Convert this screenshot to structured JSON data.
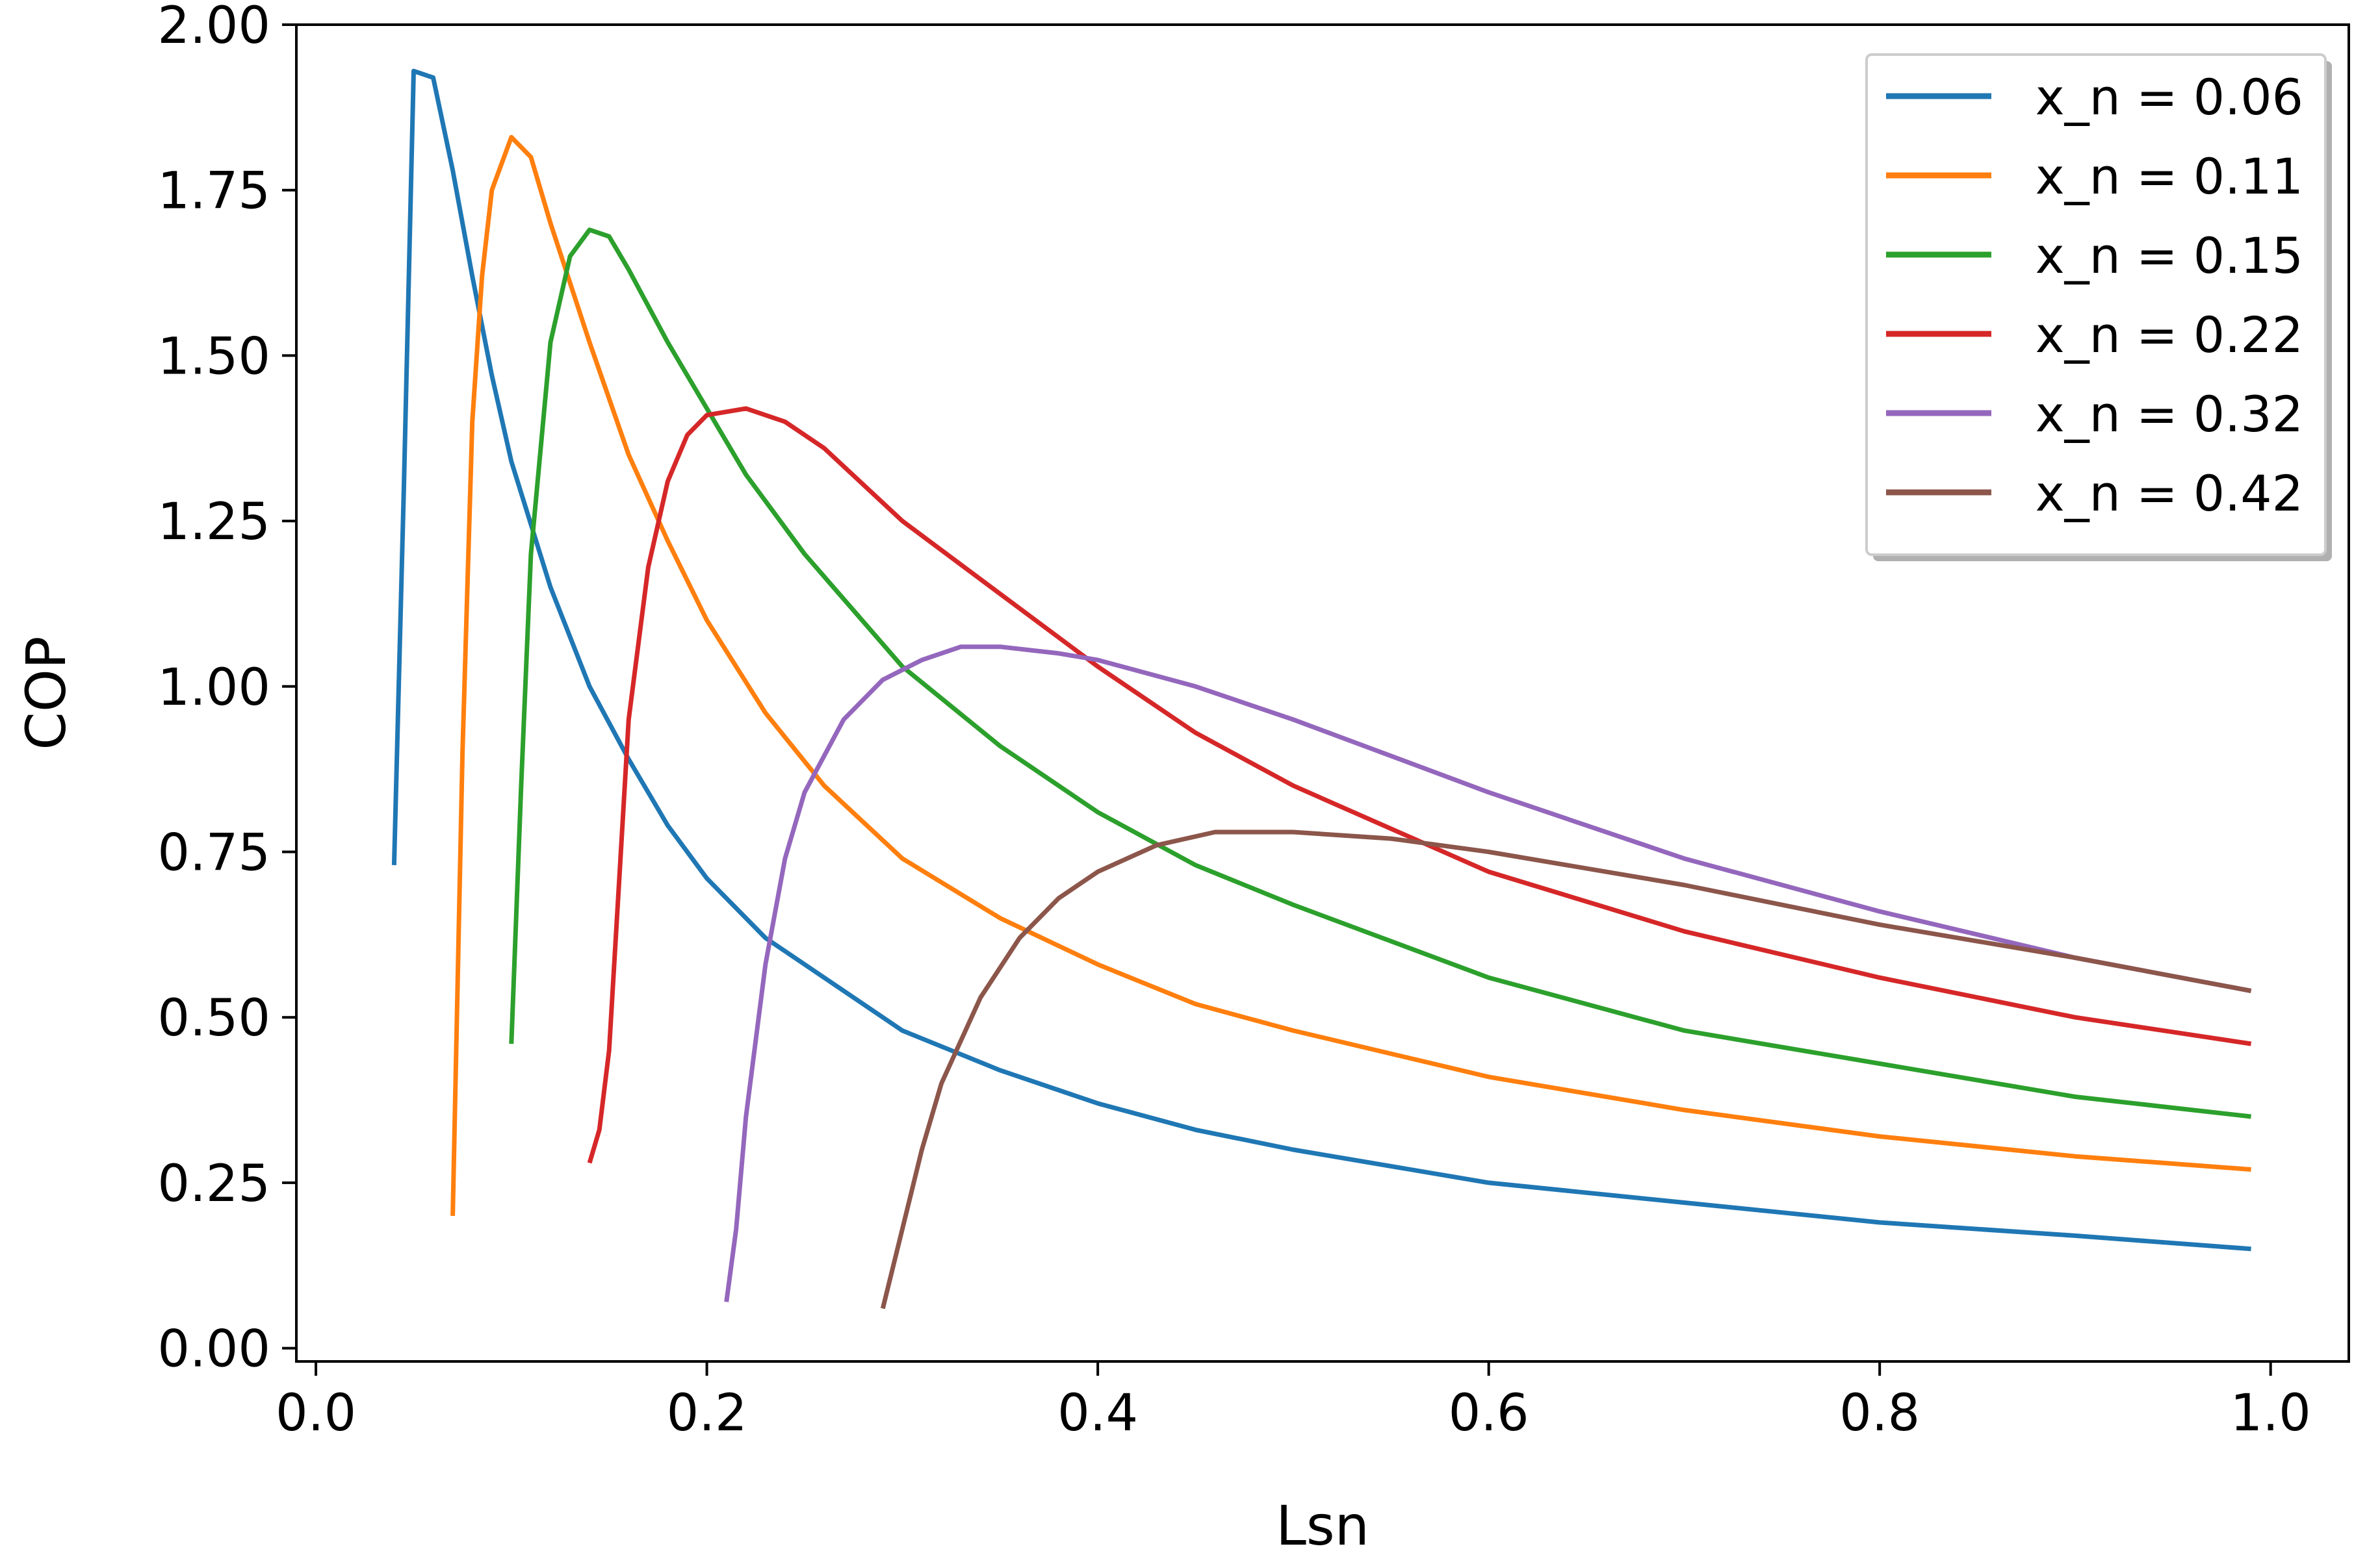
{
  "chart_data": {
    "type": "line",
    "title": "",
    "xlabel": "Lsn",
    "ylabel": "COP",
    "xlim": [
      -0.01,
      1.04
    ],
    "ylim": [
      -0.02,
      2.0
    ],
    "xticks": [
      0.0,
      0.2,
      0.4,
      0.6,
      0.8,
      1.0
    ],
    "xtick_labels": [
      "0.0",
      "0.2",
      "0.4",
      "0.6",
      "0.8",
      "1.0"
    ],
    "yticks": [
      0.0,
      0.25,
      0.5,
      0.75,
      1.0,
      1.25,
      1.5,
      1.75,
      2.0
    ],
    "ytick_labels": [
      "0.00",
      "0.25",
      "0.50",
      "0.75",
      "1.00",
      "1.25",
      "1.50",
      "1.75",
      "2.00"
    ],
    "grid": false,
    "legend_position": "top-right",
    "series": [
      {
        "name": "x_n = 0.06",
        "color": "#1f77b4",
        "x": [
          0.04,
          0.045,
          0.05,
          0.06,
          0.07,
          0.08,
          0.09,
          0.1,
          0.12,
          0.14,
          0.16,
          0.18,
          0.2,
          0.23,
          0.26,
          0.3,
          0.35,
          0.4,
          0.45,
          0.5,
          0.6,
          0.7,
          0.8,
          0.9,
          0.99
        ],
        "y": [
          0.73,
          1.3,
          1.93,
          1.92,
          1.78,
          1.62,
          1.47,
          1.34,
          1.15,
          1.0,
          0.89,
          0.79,
          0.71,
          0.62,
          0.56,
          0.48,
          0.42,
          0.37,
          0.33,
          0.3,
          0.25,
          0.22,
          0.19,
          0.17,
          0.15
        ]
      },
      {
        "name": "x_n = 0.11",
        "color": "#ff7f0e",
        "x": [
          0.07,
          0.075,
          0.08,
          0.085,
          0.09,
          0.1,
          0.11,
          0.12,
          0.14,
          0.16,
          0.18,
          0.2,
          0.23,
          0.26,
          0.3,
          0.35,
          0.4,
          0.45,
          0.5,
          0.6,
          0.7,
          0.8,
          0.9,
          0.99
        ],
        "y": [
          0.2,
          0.9,
          1.4,
          1.62,
          1.75,
          1.83,
          1.8,
          1.7,
          1.52,
          1.35,
          1.22,
          1.1,
          0.96,
          0.85,
          0.74,
          0.65,
          0.58,
          0.52,
          0.48,
          0.41,
          0.36,
          0.32,
          0.29,
          0.27
        ]
      },
      {
        "name": "x_n = 0.15",
        "color": "#2ca02c",
        "x": [
          0.1,
          0.105,
          0.11,
          0.12,
          0.13,
          0.14,
          0.15,
          0.16,
          0.18,
          0.2,
          0.22,
          0.25,
          0.3,
          0.35,
          0.4,
          0.45,
          0.5,
          0.6,
          0.7,
          0.8,
          0.9,
          0.99
        ],
        "y": [
          0.46,
          0.85,
          1.2,
          1.52,
          1.65,
          1.69,
          1.68,
          1.63,
          1.52,
          1.42,
          1.32,
          1.2,
          1.03,
          0.91,
          0.81,
          0.73,
          0.67,
          0.56,
          0.48,
          0.43,
          0.38,
          0.35
        ]
      },
      {
        "name": "x_n = 0.22",
        "color": "#d62728",
        "x": [
          0.14,
          0.145,
          0.15,
          0.155,
          0.16,
          0.17,
          0.18,
          0.19,
          0.2,
          0.22,
          0.24,
          0.26,
          0.3,
          0.35,
          0.4,
          0.45,
          0.5,
          0.6,
          0.7,
          0.8,
          0.9,
          0.99
        ],
        "y": [
          0.28,
          0.33,
          0.45,
          0.7,
          0.95,
          1.18,
          1.31,
          1.38,
          1.41,
          1.42,
          1.4,
          1.36,
          1.25,
          1.14,
          1.03,
          0.93,
          0.85,
          0.72,
          0.63,
          0.56,
          0.5,
          0.46
        ]
      },
      {
        "name": "x_n = 0.32",
        "color": "#9467bd",
        "x": [
          0.21,
          0.215,
          0.22,
          0.23,
          0.24,
          0.25,
          0.27,
          0.29,
          0.31,
          0.33,
          0.35,
          0.38,
          0.4,
          0.45,
          0.5,
          0.6,
          0.7,
          0.8,
          0.9,
          0.99
        ],
        "y": [
          0.07,
          0.18,
          0.35,
          0.58,
          0.74,
          0.84,
          0.95,
          1.01,
          1.04,
          1.06,
          1.06,
          1.05,
          1.04,
          1.0,
          0.95,
          0.84,
          0.74,
          0.66,
          0.59,
          0.54
        ]
      },
      {
        "name": "x_n = 0.42",
        "color": "#8c564b",
        "x": [
          0.29,
          0.3,
          0.31,
          0.32,
          0.34,
          0.36,
          0.38,
          0.4,
          0.43,
          0.46,
          0.5,
          0.55,
          0.6,
          0.7,
          0.8,
          0.9,
          0.99
        ],
        "y": [
          0.06,
          0.18,
          0.3,
          0.4,
          0.53,
          0.62,
          0.68,
          0.72,
          0.76,
          0.78,
          0.78,
          0.77,
          0.75,
          0.7,
          0.64,
          0.59,
          0.54
        ]
      }
    ]
  }
}
